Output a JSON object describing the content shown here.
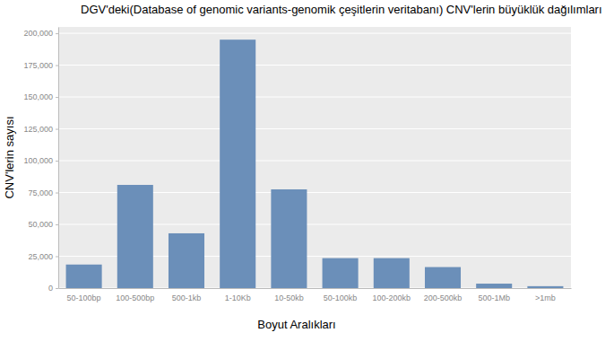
{
  "chart_data": {
    "type": "bar",
    "title": "DGV'deki(Database of genomic variants-genomik çeşitlerin veritabanı) CNV'lerin büyüklük dağılımları",
    "x_label": "Boyut Aralıkları",
    "y_label": "CNV'lerin sayısı",
    "categories": [
      "50-100bp",
      "100-500bp",
      "500-1kb",
      "1-10Kb",
      "10-50kb",
      "50-100kb",
      "100-200kb",
      "200-500kb",
      "500-1Mb",
      ">1mb"
    ],
    "values": [
      18500,
      81000,
      43000,
      195000,
      77500,
      23500,
      23500,
      16500,
      3500,
      1500
    ],
    "color": "#6b8fb9",
    "ylim": [
      0,
      205000
    ],
    "yticks": [
      0,
      {
        "value": 25000,
        "label": "25,000"
      },
      {
        "value": 50000,
        "label": "50,000"
      },
      {
        "value": 75000,
        "label": "75,000"
      },
      {
        "value": 100000,
        "label": "100,000"
      },
      {
        "value": 125000,
        "label": "125,000"
      },
      {
        "value": 150000,
        "label": "150,000"
      },
      {
        "value": 175000,
        "label": "175,000"
      },
      {
        "value": 200000,
        "label": "200,000"
      }
    ],
    "grid": true
  }
}
